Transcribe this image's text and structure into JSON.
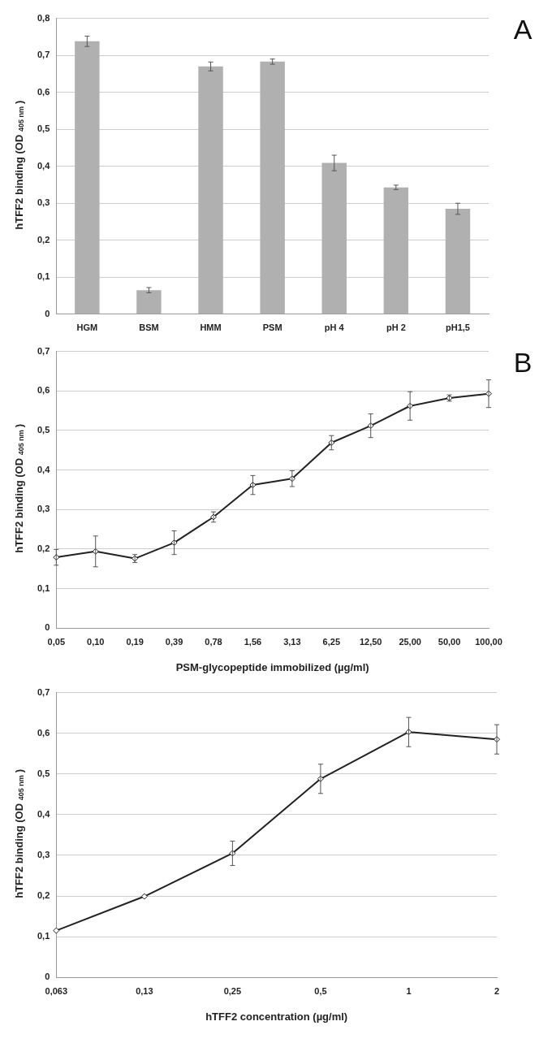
{
  "chart_data": [
    {
      "type": "bar",
      "ylabel": "hTFF2 binding (OD $_{405 nm}$)",
      "annotations": [
        "A"
      ],
      "categories": [
        "HGM",
        "BSM",
        "HMM",
        "PSM",
        "pH 4",
        "pH 2",
        "pH1,5"
      ],
      "values": [
        0.738,
        0.065,
        0.67,
        0.683,
        0.409,
        0.343,
        0.285
      ],
      "errors": [
        0.014,
        0.007,
        0.012,
        0.007,
        0.021,
        0.006,
        0.015
      ],
      "color": "#b0b0b0",
      "ylim": [
        0,
        0.8
      ],
      "yticks": [
        {
          "value": 0,
          "label": "0"
        },
        {
          "value": 0.1,
          "label": "0,1"
        },
        {
          "value": 0.2,
          "label": "0,2"
        },
        {
          "value": 0.3,
          "label": "0,3"
        },
        {
          "value": 0.4,
          "label": "0,4"
        },
        {
          "value": 0.5,
          "label": "0,5"
        },
        {
          "value": 0.6,
          "label": "0,6"
        },
        {
          "value": 0.7,
          "label": "0,7"
        },
        {
          "value": 0.8,
          "label": "0,8"
        }
      ],
      "grid": "y"
    },
    {
      "type": "line",
      "ylabel": "hTFF2 binding (OD $_{405 nm}$)",
      "xlabel": "PSM-glycopeptide immobilized (µg/ml)",
      "annotations": [
        "B"
      ],
      "categories": [
        "0,05",
        "0,10",
        "0,19",
        "0,39",
        "0,78",
        "1,56",
        "3,13",
        "6,25",
        "12,50",
        "25,00",
        "50,00",
        "100,00"
      ],
      "values": [
        0.179,
        0.194,
        0.176,
        0.216,
        0.281,
        0.362,
        0.378,
        0.469,
        0.512,
        0.562,
        0.582,
        0.593
      ],
      "errors": [
        0.02,
        0.039,
        0.01,
        0.03,
        0.013,
        0.024,
        0.02,
        0.018,
        0.03,
        0.036,
        0.008,
        0.035
      ],
      "color": "#222222",
      "marker": "diamond",
      "ylim": [
        0,
        0.7
      ],
      "yticks": [
        {
          "value": 0,
          "label": "0"
        },
        {
          "value": 0.1,
          "label": "0,1"
        },
        {
          "value": 0.2,
          "label": "0,2"
        },
        {
          "value": 0.3,
          "label": "0,3"
        },
        {
          "value": 0.4,
          "label": "0,4"
        },
        {
          "value": 0.5,
          "label": "0,5"
        },
        {
          "value": 0.6,
          "label": "0,6"
        },
        {
          "value": 0.7,
          "label": "0,7"
        }
      ],
      "grid": "y"
    },
    {
      "type": "line",
      "ylabel": "hTFF2 binding (OD $_{405 nm}$)",
      "xlabel": "hTFF2 concentration (µg/ml)",
      "categories": [
        "0,063",
        "0,13",
        "0,25",
        "0,5",
        "1",
        "2"
      ],
      "values": [
        0.115,
        0.199,
        0.305,
        0.488,
        0.603,
        0.585
      ],
      "errors": [
        null,
        null,
        0.03,
        0.036,
        0.036,
        0.036
      ],
      "color": "#222222",
      "marker": "diamond",
      "ylim": [
        0,
        0.7
      ],
      "yticks": [
        {
          "value": 0,
          "label": "0"
        },
        {
          "value": 0.1,
          "label": "0,1"
        },
        {
          "value": 0.2,
          "label": "0,2"
        },
        {
          "value": 0.3,
          "label": "0,3"
        },
        {
          "value": 0.4,
          "label": "0,4"
        },
        {
          "value": 0.5,
          "label": "0,5"
        },
        {
          "value": 0.6,
          "label": "0,6"
        },
        {
          "value": 0.7,
          "label": "0,7"
        }
      ],
      "grid": "y"
    }
  ]
}
